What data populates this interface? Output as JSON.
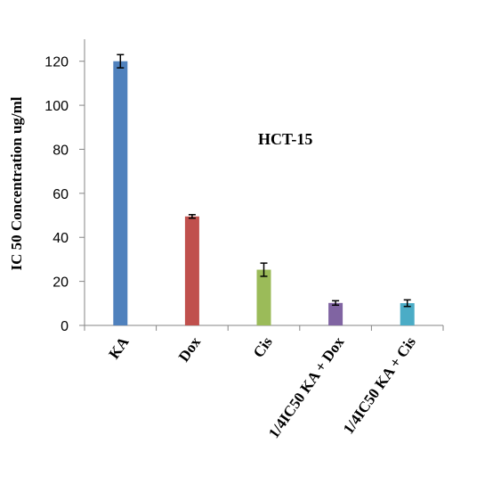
{
  "chart_data": {
    "type": "bar",
    "title": "",
    "annotation": "HCT-15",
    "xlabel": "",
    "ylabel": "IC  50 Concentration ug/ml",
    "ylim": [
      0,
      130
    ],
    "yticks": [
      0,
      20,
      40,
      60,
      80,
      100,
      120
    ],
    "grid": false,
    "categories": [
      "KA",
      "Dox",
      "Cis",
      "1/4IC50 KA + Dox",
      "1/4IC50 KA + Cis"
    ],
    "series": [
      {
        "values": [
          120,
          49.5,
          25.3,
          10.2,
          10.1
        ],
        "errors": [
          3,
          0.8,
          3,
          1,
          1.5
        ],
        "colors": [
          "#4f81bd",
          "#c0504d",
          "#9bbb59",
          "#8064a2",
          "#4bacc6"
        ]
      }
    ]
  }
}
